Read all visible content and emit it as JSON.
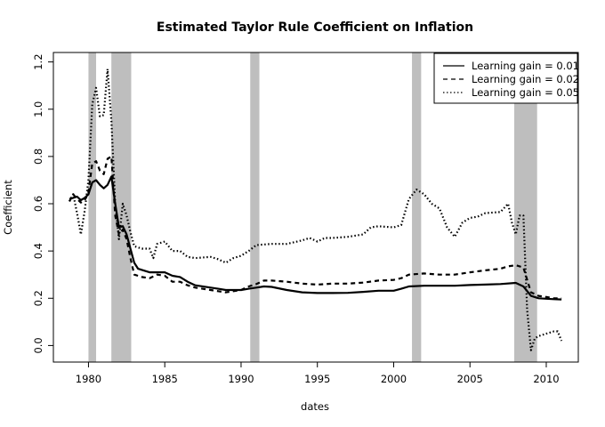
{
  "chart_data": {
    "type": "line",
    "title": "Estimated Taylor Rule Coefficient on Inflation",
    "xlabel": "dates",
    "ylabel": "Coefficient",
    "xlim": [
      1977.7,
      2012.1
    ],
    "ylim": [
      -0.07,
      1.24
    ],
    "x_ticks": [
      1980,
      1985,
      1990,
      1995,
      2000,
      2005,
      2010
    ],
    "y_ticks": [
      0.0,
      0.2,
      0.4,
      0.6,
      0.8,
      1.0,
      1.2
    ],
    "y_tick_labels": [
      "0.0",
      "0.2",
      "0.4",
      "0.6",
      "0.8",
      "1.0",
      "1.2"
    ],
    "legend_position": "top-right",
    "recessions": [
      [
        1980.0,
        1980.5
      ],
      [
        1981.5,
        1982.8
      ],
      [
        1990.6,
        1991.2
      ],
      [
        2001.2,
        2001.8
      ],
      [
        2007.9,
        2009.4
      ]
    ],
    "series": [
      {
        "name": "Learning gain = 0.01",
        "dash": "solid",
        "points": [
          [
            1978.75,
            0.62
          ],
          [
            1979.0,
            0.625
          ],
          [
            1979.25,
            0.63
          ],
          [
            1979.5,
            0.615
          ],
          [
            1979.75,
            0.625
          ],
          [
            1980.0,
            0.64
          ],
          [
            1980.25,
            0.69
          ],
          [
            1980.5,
            0.7
          ],
          [
            1980.75,
            0.68
          ],
          [
            1981.0,
            0.665
          ],
          [
            1981.25,
            0.68
          ],
          [
            1981.5,
            0.715
          ],
          [
            1981.75,
            0.6
          ],
          [
            1982.0,
            0.5
          ],
          [
            1982.25,
            0.505
          ],
          [
            1982.5,
            0.47
          ],
          [
            1982.75,
            0.41
          ],
          [
            1983.0,
            0.35
          ],
          [
            1983.25,
            0.325
          ],
          [
            1983.5,
            0.32
          ],
          [
            1984.0,
            0.31
          ],
          [
            1984.5,
            0.31
          ],
          [
            1985.0,
            0.31
          ],
          [
            1985.5,
            0.295
          ],
          [
            1986.0,
            0.29
          ],
          [
            1986.5,
            0.27
          ],
          [
            1987.0,
            0.255
          ],
          [
            1988.0,
            0.245
          ],
          [
            1988.5,
            0.24
          ],
          [
            1989.0,
            0.235
          ],
          [
            1990.0,
            0.235
          ],
          [
            1990.5,
            0.24
          ],
          [
            1991.0,
            0.245
          ],
          [
            1991.5,
            0.25
          ],
          [
            1992.0,
            0.248
          ],
          [
            1993.0,
            0.235
          ],
          [
            1994.0,
            0.225
          ],
          [
            1995.0,
            0.222
          ],
          [
            1996.0,
            0.222
          ],
          [
            1997.0,
            0.223
          ],
          [
            1998.0,
            0.227
          ],
          [
            1999.0,
            0.232
          ],
          [
            2000.0,
            0.232
          ],
          [
            2000.5,
            0.24
          ],
          [
            2001.0,
            0.25
          ],
          [
            2002.0,
            0.253
          ],
          [
            2003.0,
            0.253
          ],
          [
            2004.0,
            0.253
          ],
          [
            2005.0,
            0.256
          ],
          [
            2006.0,
            0.258
          ],
          [
            2007.0,
            0.26
          ],
          [
            2008.0,
            0.265
          ],
          [
            2008.5,
            0.25
          ],
          [
            2009.0,
            0.21
          ],
          [
            2009.5,
            0.2
          ],
          [
            2010.0,
            0.198
          ],
          [
            2010.5,
            0.196
          ],
          [
            2011.0,
            0.195
          ]
        ]
      },
      {
        "name": "Learning gain = 0.02",
        "dash": "5,4",
        "points": [
          [
            1978.75,
            0.61
          ],
          [
            1979.0,
            0.64
          ],
          [
            1979.25,
            0.62
          ],
          [
            1979.5,
            0.605
          ],
          [
            1979.75,
            0.615
          ],
          [
            1980.0,
            0.65
          ],
          [
            1980.25,
            0.77
          ],
          [
            1980.5,
            0.78
          ],
          [
            1980.75,
            0.74
          ],
          [
            1981.0,
            0.725
          ],
          [
            1981.25,
            0.79
          ],
          [
            1981.5,
            0.8
          ],
          [
            1981.75,
            0.55
          ],
          [
            1982.0,
            0.47
          ],
          [
            1982.25,
            0.49
          ],
          [
            1982.5,
            0.45
          ],
          [
            1982.75,
            0.37
          ],
          [
            1983.0,
            0.3
          ],
          [
            1983.5,
            0.29
          ],
          [
            1984.0,
            0.285
          ],
          [
            1984.5,
            0.3
          ],
          [
            1985.0,
            0.295
          ],
          [
            1985.5,
            0.27
          ],
          [
            1986.0,
            0.27
          ],
          [
            1986.5,
            0.255
          ],
          [
            1987.0,
            0.245
          ],
          [
            1988.0,
            0.235
          ],
          [
            1988.5,
            0.23
          ],
          [
            1989.0,
            0.225
          ],
          [
            1990.0,
            0.235
          ],
          [
            1990.5,
            0.25
          ],
          [
            1991.0,
            0.26
          ],
          [
            1991.5,
            0.275
          ],
          [
            1992.0,
            0.275
          ],
          [
            1993.0,
            0.27
          ],
          [
            1994.0,
            0.262
          ],
          [
            1995.0,
            0.258
          ],
          [
            1996.0,
            0.262
          ],
          [
            1997.0,
            0.262
          ],
          [
            1998.0,
            0.266
          ],
          [
            1999.0,
            0.275
          ],
          [
            2000.0,
            0.278
          ],
          [
            2000.5,
            0.285
          ],
          [
            2001.0,
            0.3
          ],
          [
            2002.0,
            0.305
          ],
          [
            2003.0,
            0.3
          ],
          [
            2004.0,
            0.3
          ],
          [
            2005.0,
            0.31
          ],
          [
            2006.0,
            0.318
          ],
          [
            2007.0,
            0.325
          ],
          [
            2007.5,
            0.335
          ],
          [
            2008.0,
            0.34
          ],
          [
            2008.5,
            0.33
          ],
          [
            2009.0,
            0.225
          ],
          [
            2009.5,
            0.21
          ],
          [
            2010.0,
            0.205
          ],
          [
            2010.5,
            0.2
          ],
          [
            2011.0,
            0.2
          ]
        ]
      },
      {
        "name": "Learning gain = 0.05",
        "dash": "1.5,2.5",
        "points": [
          [
            1978.75,
            0.61
          ],
          [
            1979.0,
            0.64
          ],
          [
            1979.25,
            0.56
          ],
          [
            1979.5,
            0.47
          ],
          [
            1979.75,
            0.57
          ],
          [
            1980.0,
            0.7
          ],
          [
            1980.25,
            1.02
          ],
          [
            1980.5,
            1.09
          ],
          [
            1980.75,
            0.97
          ],
          [
            1981.0,
            0.975
          ],
          [
            1981.25,
            1.17
          ],
          [
            1981.5,
            0.95
          ],
          [
            1981.75,
            0.6
          ],
          [
            1982.0,
            0.45
          ],
          [
            1982.25,
            0.6
          ],
          [
            1982.5,
            0.55
          ],
          [
            1982.75,
            0.48
          ],
          [
            1983.0,
            0.42
          ],
          [
            1983.5,
            0.41
          ],
          [
            1984.0,
            0.41
          ],
          [
            1984.25,
            0.37
          ],
          [
            1984.5,
            0.43
          ],
          [
            1985.0,
            0.44
          ],
          [
            1985.5,
            0.4
          ],
          [
            1986.0,
            0.4
          ],
          [
            1986.5,
            0.375
          ],
          [
            1987.0,
            0.37
          ],
          [
            1988.0,
            0.375
          ],
          [
            1988.5,
            0.365
          ],
          [
            1989.0,
            0.35
          ],
          [
            1989.5,
            0.37
          ],
          [
            1990.0,
            0.38
          ],
          [
            1990.5,
            0.4
          ],
          [
            1991.0,
            0.425
          ],
          [
            1992.0,
            0.43
          ],
          [
            1993.0,
            0.43
          ],
          [
            1994.0,
            0.445
          ],
          [
            1994.5,
            0.455
          ],
          [
            1995.0,
            0.44
          ],
          [
            1995.5,
            0.455
          ],
          [
            1996.0,
            0.455
          ],
          [
            1997.0,
            0.46
          ],
          [
            1998.0,
            0.47
          ],
          [
            1998.5,
            0.5
          ],
          [
            1999.0,
            0.505
          ],
          [
            2000.0,
            0.5
          ],
          [
            2000.5,
            0.51
          ],
          [
            2001.0,
            0.62
          ],
          [
            2001.5,
            0.66
          ],
          [
            2002.0,
            0.64
          ],
          [
            2002.5,
            0.6
          ],
          [
            2003.0,
            0.58
          ],
          [
            2003.5,
            0.5
          ],
          [
            2004.0,
            0.46
          ],
          [
            2004.5,
            0.52
          ],
          [
            2005.0,
            0.54
          ],
          [
            2005.5,
            0.545
          ],
          [
            2006.0,
            0.56
          ],
          [
            2007.0,
            0.565
          ],
          [
            2007.5,
            0.6
          ],
          [
            2007.75,
            0.52
          ],
          [
            2008.0,
            0.47
          ],
          [
            2008.25,
            0.55
          ],
          [
            2008.5,
            0.55
          ],
          [
            2008.75,
            0.15
          ],
          [
            2009.0,
            -0.02
          ],
          [
            2009.25,
            0.03
          ],
          [
            2009.5,
            0.04
          ],
          [
            2010.0,
            0.05
          ],
          [
            2010.5,
            0.06
          ],
          [
            2010.75,
            0.06
          ],
          [
            2011.0,
            0.02
          ]
        ]
      }
    ]
  }
}
